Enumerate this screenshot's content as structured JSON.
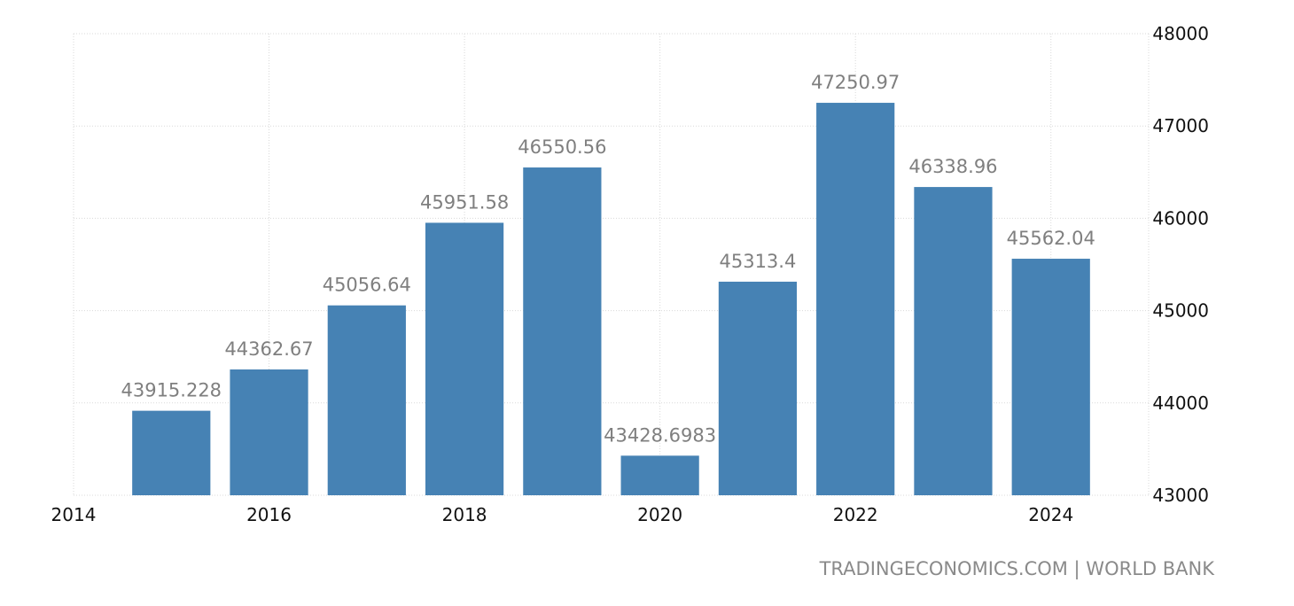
{
  "chart_data": {
    "type": "bar",
    "categories": [
      "2015",
      "2016",
      "2017",
      "2018",
      "2019",
      "2020",
      "2021",
      "2022",
      "2023",
      "2024"
    ],
    "x": [
      2015,
      2016,
      2017,
      2018,
      2019,
      2020,
      2021,
      2022,
      2023,
      2024
    ],
    "values": [
      43915.228,
      44362.67,
      45056.64,
      45951.58,
      46550.56,
      43428.6983,
      45313.4,
      47250.97,
      46338.96,
      45562.04
    ],
    "value_labels": [
      "43915.228",
      "44362.67",
      "45056.64",
      "45951.58",
      "46550.56",
      "43428.6983",
      "45313.4",
      "47250.97",
      "46338.96",
      "45562.04"
    ],
    "x_ticks": [
      "2014",
      "2016",
      "2018",
      "2020",
      "2022",
      "2024"
    ],
    "y_ticks": [
      "43000",
      "44000",
      "45000",
      "46000",
      "47000",
      "48000"
    ],
    "ylim": [
      43000,
      48000
    ],
    "xlim": [
      2014,
      2025
    ],
    "y_axis_side": "right",
    "grid": true,
    "bar_color": "#4682b4",
    "label_color": "#7f7f7f"
  },
  "source": "TRADINGECONOMICS.COM  |  WORLD BANK"
}
